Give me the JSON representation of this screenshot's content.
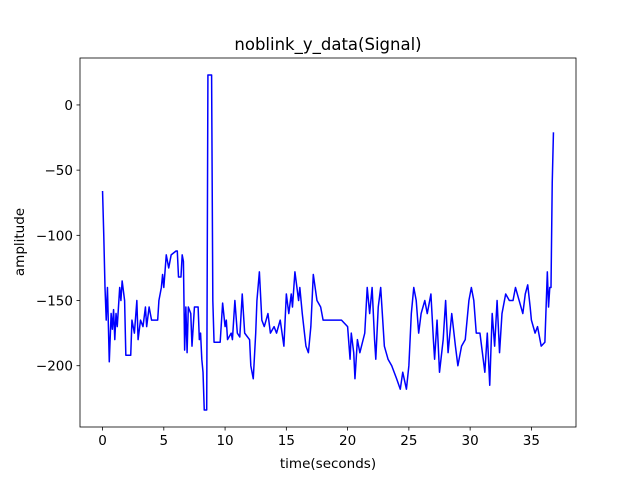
{
  "chart_data": {
    "type": "line",
    "title": "noblink_y_data(Signal)",
    "x_label": "time(seconds)",
    "y_label": "amplitude",
    "x": [
      0,
      0.1,
      0.2,
      0.3,
      0.4,
      0.55,
      0.7,
      0.8,
      0.9,
      1.0,
      1.1,
      1.2,
      1.4,
      1.5,
      1.6,
      1.8,
      1.9,
      2.3,
      2.4,
      2.6,
      2.8,
      2.9,
      3.1,
      3.3,
      3.5,
      3.6,
      3.8,
      4.0,
      4.5,
      4.6,
      4.8,
      4.9,
      5.0,
      5.2,
      5.4,
      5.6,
      6.0,
      6.1,
      6.2,
      6.4,
      6.5,
      6.6,
      6.7,
      6.8,
      6.9,
      7.0,
      7.2,
      7.3,
      7.5,
      7.8,
      7.9,
      8.0,
      8.1,
      8.2,
      8.3,
      8.5,
      8.6,
      8.9,
      9.0,
      9.1,
      9.6,
      9.8,
      10.0,
      10.1,
      10.2,
      10.5,
      10.6,
      10.8,
      11.0,
      11.2,
      11.4,
      11.6,
      12.0,
      12.1,
      12.3,
      12.5,
      12.6,
      12.8,
      13.0,
      13.2,
      13.5,
      13.7,
      14.0,
      14.2,
      14.5,
      14.8,
      15.0,
      15.2,
      15.4,
      15.5,
      15.7,
      16.0,
      16.1,
      16.3,
      16.6,
      16.8,
      17.0,
      17.2,
      17.5,
      17.8,
      18.0,
      19.5,
      20.0,
      20.2,
      20.3,
      20.5,
      20.6,
      20.8,
      21.0,
      21.4,
      21.6,
      21.8,
      22.0,
      22.2,
      22.3,
      22.5,
      22.7,
      23.0,
      23.3,
      23.6,
      24.0,
      24.3,
      24.5,
      24.8,
      25.0,
      25.2,
      25.4,
      25.6,
      25.8,
      26.0,
      26.3,
      26.5,
      26.8,
      27.0,
      27.1,
      27.3,
      27.5,
      27.8,
      28.0,
      28.2,
      28.5,
      28.8,
      29.0,
      29.3,
      29.6,
      29.9,
      30.1,
      30.3,
      30.5,
      30.8,
      31.0,
      31.2,
      31.4,
      31.6,
      31.8,
      32.0,
      32.2,
      32.4,
      32.6,
      32.9,
      33.2,
      33.5,
      33.7,
      34.0,
      34.3,
      34.5,
      34.7,
      34.9,
      35.0,
      35.3,
      35.5,
      35.8,
      36.1,
      36.3,
      36.4,
      36.5,
      36.6,
      36.7,
      36.8
    ],
    "series": [
      {
        "color": "#0000ff",
        "values": [
          -66,
          -100,
          -140,
          -165,
          -140,
          -197,
          -160,
          -172,
          -157,
          -180,
          -160,
          -170,
          -140,
          -150,
          -135,
          -150,
          -192,
          -192,
          -165,
          -175,
          -150,
          -180,
          -165,
          -170,
          -155,
          -170,
          -155,
          -165,
          -165,
          -150,
          -140,
          -130,
          -140,
          -115,
          -125,
          -115,
          -112,
          -112,
          -132,
          -132,
          -115,
          -120,
          -188,
          -155,
          -190,
          -155,
          -160,
          -185,
          -155,
          -155,
          -180,
          -175,
          -195,
          -205,
          -234,
          -234,
          23,
          23,
          -150,
          -182,
          -182,
          -152,
          -170,
          -165,
          -180,
          -175,
          -180,
          -150,
          -175,
          -178,
          -145,
          -175,
          -180,
          -200,
          -210,
          -175,
          -150,
          -128,
          -165,
          -170,
          -160,
          -175,
          -170,
          -175,
          -165,
          -185,
          -145,
          -160,
          -145,
          -155,
          -128,
          -150,
          -140,
          -160,
          -185,
          -190,
          -170,
          -130,
          -150,
          -155,
          -165,
          -165,
          -170,
          -195,
          -175,
          -190,
          -210,
          -180,
          -190,
          -175,
          -140,
          -160,
          -140,
          -180,
          -195,
          -155,
          -140,
          -185,
          -195,
          -200,
          -210,
          -218,
          -205,
          -218,
          -200,
          -160,
          -140,
          -150,
          -175,
          -160,
          -150,
          -160,
          -145,
          -180,
          -195,
          -165,
          -205,
          -180,
          -150,
          -190,
          -160,
          -185,
          -200,
          -185,
          -180,
          -150,
          -140,
          -150,
          -175,
          -175,
          -190,
          -205,
          -175,
          -215,
          -160,
          -185,
          -150,
          -190,
          -160,
          -145,
          -150,
          -150,
          -140,
          -150,
          -160,
          -145,
          -138,
          -155,
          -165,
          -175,
          -170,
          -185,
          -182,
          -128,
          -155,
          -140,
          -140,
          -60,
          -21
        ]
      }
    ],
    "xlim": [
      -1.84,
      38.64
    ],
    "ylim": [
      -247,
      36
    ],
    "xticks": [
      0,
      5,
      10,
      15,
      20,
      25,
      30,
      35
    ],
    "yticks": [
      {
        "value": -200,
        "label": "−200"
      },
      {
        "value": -150,
        "label": "−150"
      },
      {
        "value": -100,
        "label": "−100"
      },
      {
        "value": -50,
        "label": "−50"
      },
      0
    ],
    "grid": false
  }
}
